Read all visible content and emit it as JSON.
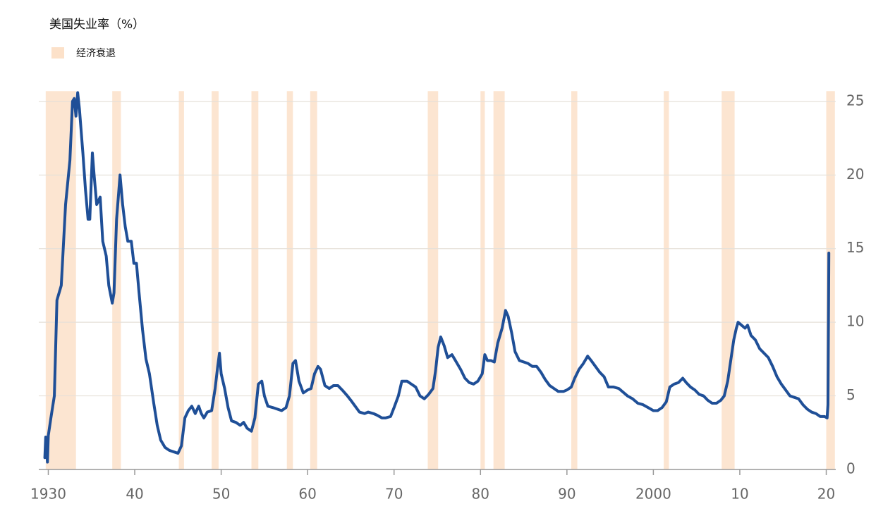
{
  "chart_data": {
    "type": "line",
    "title": "美国失业率（%）",
    "recessions": {
      "name": "经济衰退",
      "color": "#fce1c9",
      "spans": [
        [
          1929.7,
          1933.2
        ],
        [
          1937.4,
          1938.4
        ],
        [
          1945.1,
          1945.7
        ],
        [
          1948.9,
          1949.7
        ],
        [
          1953.5,
          1954.3
        ],
        [
          1957.6,
          1958.3
        ],
        [
          1960.3,
          1961.1
        ],
        [
          1973.9,
          1975.1
        ],
        [
          1980.0,
          1980.5
        ],
        [
          1981.5,
          1982.8
        ],
        [
          1990.5,
          1991.2
        ],
        [
          2001.2,
          2001.8
        ],
        [
          2007.9,
          2009.4
        ],
        [
          2020.0,
          2021.0
        ]
      ]
    },
    "color": "#1f4f97",
    "x": [
      1929.6,
      1929.7,
      1929.9,
      1930.0,
      1930.3,
      1930.7,
      1931.0,
      1931.5,
      1932.0,
      1932.5,
      1932.8,
      1933.0,
      1933.2,
      1933.4,
      1933.6,
      1934.0,
      1934.3,
      1934.6,
      1934.8,
      1935.1,
      1935.3,
      1935.6,
      1936.0,
      1936.3,
      1936.7,
      1937.0,
      1937.4,
      1937.6,
      1937.9,
      1938.3,
      1938.6,
      1938.9,
      1939.2,
      1939.6,
      1939.9,
      1940.2,
      1940.5,
      1940.9,
      1941.3,
      1941.7,
      1942.2,
      1942.6,
      1943.0,
      1943.5,
      1944.0,
      1944.5,
      1945.0,
      1945.4,
      1945.8,
      1946.2,
      1946.6,
      1947.0,
      1947.4,
      1947.7,
      1948.0,
      1948.4,
      1948.9,
      1949.3,
      1949.6,
      1949.8,
      1950.0,
      1950.4,
      1950.8,
      1951.2,
      1951.7,
      1952.2,
      1952.6,
      1953.0,
      1953.5,
      1953.9,
      1954.3,
      1954.7,
      1955.0,
      1955.4,
      1956.0,
      1956.5,
      1957.0,
      1957.5,
      1957.9,
      1958.3,
      1958.6,
      1959.0,
      1959.5,
      1960.0,
      1960.4,
      1960.8,
      1961.2,
      1961.5,
      1962.0,
      1962.5,
      1963.0,
      1963.5,
      1964.0,
      1964.6,
      1965.0,
      1965.5,
      1966.0,
      1966.6,
      1967.0,
      1967.6,
      1968.0,
      1968.6,
      1969.0,
      1969.6,
      1970.0,
      1970.5,
      1970.9,
      1971.5,
      1972.0,
      1972.5,
      1973.0,
      1973.5,
      1974.0,
      1974.5,
      1974.8,
      1975.1,
      1975.4,
      1975.8,
      1976.2,
      1976.7,
      1977.2,
      1977.7,
      1978.2,
      1978.7,
      1979.2,
      1979.7,
      1980.2,
      1980.5,
      1980.8,
      1981.2,
      1981.6,
      1982.0,
      1982.5,
      1982.9,
      1983.2,
      1983.6,
      1984.0,
      1984.5,
      1985.0,
      1985.5,
      1986.0,
      1986.5,
      1987.0,
      1987.5,
      1988.0,
      1988.5,
      1989.0,
      1989.6,
      1990.0,
      1990.5,
      1990.9,
      1991.4,
      1991.9,
      1992.4,
      1992.8,
      1993.3,
      1993.8,
      1994.3,
      1994.8,
      1995.4,
      1996.0,
      1996.6,
      1997.0,
      1997.6,
      1998.2,
      1998.8,
      1999.4,
      2000.0,
      2000.5,
      2001.0,
      2001.5,
      2001.9,
      2002.4,
      2002.9,
      2003.4,
      2003.8,
      2004.3,
      2004.8,
      2005.3,
      2005.8,
      2006.3,
      2006.8,
      2007.3,
      2007.8,
      2008.2,
      2008.6,
      2008.9,
      2009.3,
      2009.6,
      2009.8,
      2010.2,
      2010.6,
      2010.9,
      2011.3,
      2011.8,
      2012.3,
      2012.8,
      2013.3,
      2013.8,
      2014.3,
      2014.8,
      2015.3,
      2015.8,
      2016.3,
      2016.8,
      2017.3,
      2017.8,
      2018.3,
      2018.8,
      2019.3,
      2019.8,
      2020.1,
      2020.2,
      2020.3
    ],
    "values": [
      0.8,
      2.2,
      0.5,
      2.3,
      3.5,
      5.0,
      11.5,
      12.5,
      18.0,
      21.0,
      25.0,
      25.2,
      24.0,
      25.6,
      24.5,
      21.5,
      19.0,
      17.0,
      17.0,
      21.5,
      20.0,
      18.0,
      18.5,
      15.5,
      14.5,
      12.5,
      11.3,
      12.0,
      17.0,
      20.0,
      18.0,
      16.5,
      15.5,
      15.5,
      14.0,
      14.0,
      12.0,
      9.5,
      7.5,
      6.5,
      4.5,
      3.0,
      2.0,
      1.5,
      1.3,
      1.2,
      1.1,
      1.6,
      3.5,
      4.0,
      4.3,
      3.8,
      4.3,
      3.8,
      3.5,
      3.9,
      4.0,
      5.5,
      7.0,
      7.9,
      6.5,
      5.5,
      4.2,
      3.3,
      3.2,
      3.0,
      3.2,
      2.8,
      2.6,
      3.5,
      5.8,
      6.0,
      5.0,
      4.3,
      4.2,
      4.1,
      4.0,
      4.2,
      5.0,
      7.2,
      7.4,
      6.0,
      5.2,
      5.4,
      5.5,
      6.5,
      7.0,
      6.8,
      5.7,
      5.5,
      5.7,
      5.7,
      5.4,
      5.0,
      4.7,
      4.3,
      3.9,
      3.8,
      3.9,
      3.8,
      3.7,
      3.5,
      3.5,
      3.6,
      4.2,
      5.0,
      6.0,
      6.0,
      5.8,
      5.6,
      5.0,
      4.8,
      5.1,
      5.5,
      6.7,
      8.3,
      9.0,
      8.4,
      7.6,
      7.8,
      7.3,
      6.8,
      6.2,
      5.9,
      5.8,
      6.0,
      6.5,
      7.8,
      7.4,
      7.4,
      7.3,
      8.6,
      9.6,
      10.8,
      10.4,
      9.3,
      8.0,
      7.4,
      7.3,
      7.2,
      7.0,
      7.0,
      6.6,
      6.1,
      5.7,
      5.5,
      5.3,
      5.3,
      5.4,
      5.6,
      6.2,
      6.8,
      7.2,
      7.7,
      7.4,
      7.0,
      6.6,
      6.3,
      5.6,
      5.6,
      5.5,
      5.2,
      5.0,
      4.8,
      4.5,
      4.4,
      4.2,
      4.0,
      4.0,
      4.2,
      4.6,
      5.6,
      5.8,
      5.9,
      6.2,
      5.9,
      5.6,
      5.4,
      5.1,
      5.0,
      4.7,
      4.5,
      4.5,
      4.7,
      5.0,
      6.0,
      7.2,
      8.8,
      9.6,
      10.0,
      9.8,
      9.6,
      9.8,
      9.1,
      8.8,
      8.2,
      7.9,
      7.6,
      7.0,
      6.3,
      5.8,
      5.4,
      5.0,
      4.9,
      4.8,
      4.4,
      4.1,
      3.9,
      3.8,
      3.6,
      3.6,
      3.5,
      4.4,
      14.7
    ],
    "xlim": [
      1928.9,
      2021.1
    ],
    "xticks": [
      1930,
      {
        "value": 1940,
        "label": "40"
      },
      {
        "value": 1950,
        "label": "50"
      },
      {
        "value": 1960,
        "label": "60"
      },
      {
        "value": 1970,
        "label": "70"
      },
      {
        "value": 1980,
        "label": "80"
      },
      {
        "value": 1990,
        "label": "90"
      },
      2000,
      {
        "value": 2010,
        "label": "10"
      },
      {
        "value": 2020,
        "label": "20"
      }
    ],
    "ylim": [
      0,
      26
    ],
    "yticks": [
      0,
      5,
      10,
      15,
      20,
      25
    ],
    "grid": true
  }
}
